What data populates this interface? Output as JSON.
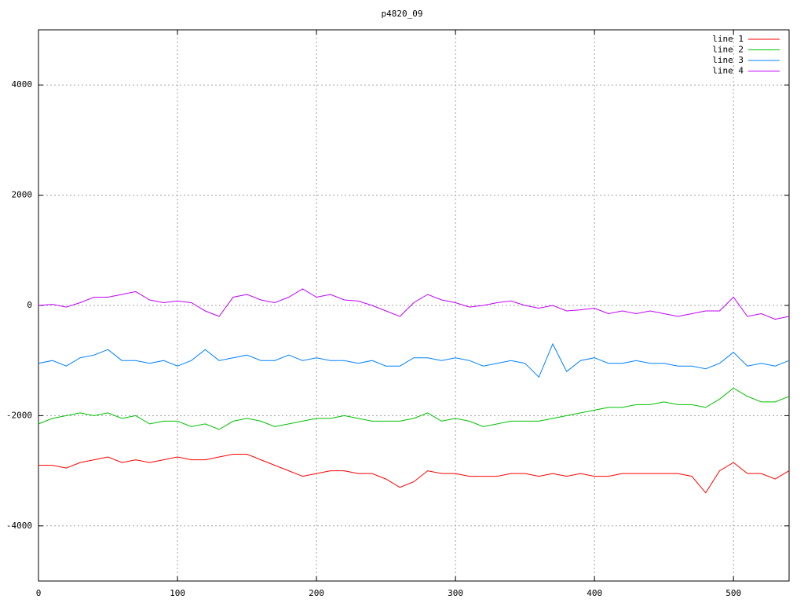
{
  "chart_data": {
    "type": "line",
    "title": "p4820_09",
    "x": [
      0,
      10,
      20,
      30,
      40,
      50,
      60,
      70,
      80,
      90,
      100,
      110,
      120,
      130,
      140,
      150,
      160,
      170,
      180,
      190,
      200,
      210,
      220,
      230,
      240,
      250,
      260,
      270,
      280,
      290,
      300,
      310,
      320,
      330,
      340,
      350,
      360,
      370,
      380,
      390,
      400,
      410,
      420,
      430,
      440,
      450,
      460,
      470,
      480,
      490,
      500,
      510,
      520,
      530,
      540
    ],
    "series": [
      {
        "name": "line 1",
        "color": "#ff0000",
        "values": [
          -2900,
          -2900,
          -2950,
          -2850,
          -2800,
          -2750,
          -2850,
          -2800,
          -2850,
          -2800,
          -2750,
          -2800,
          -2800,
          -2750,
          -2700,
          -2700,
          -2800,
          -2900,
          -3000,
          -3100,
          -3050,
          -3000,
          -3000,
          -3050,
          -3050,
          -3150,
          -3300,
          -3200,
          -3000,
          -3050,
          -3050,
          -3100,
          -3100,
          -3100,
          -3050,
          -3050,
          -3100,
          -3050,
          -3100,
          -3050,
          -3100,
          -3100,
          -3050,
          -3050,
          -3050,
          -3050,
          -3050,
          -3100,
          -3400,
          -3000,
          -2850,
          -3050,
          -3050,
          -3150,
          -3000
        ]
      },
      {
        "name": "line 2",
        "color": "#00c000",
        "values": [
          -2150,
          -2050,
          -2000,
          -1950,
          -2000,
          -1950,
          -2050,
          -2000,
          -2150,
          -2100,
          -2100,
          -2200,
          -2150,
          -2250,
          -2100,
          -2050,
          -2100,
          -2200,
          -2150,
          -2100,
          -2050,
          -2050,
          -2000,
          -2050,
          -2100,
          -2100,
          -2100,
          -2050,
          -1950,
          -2100,
          -2050,
          -2100,
          -2200,
          -2150,
          -2100,
          -2100,
          -2100,
          -2050,
          -2000,
          -1950,
          -1900,
          -1850,
          -1850,
          -1800,
          -1800,
          -1750,
          -1800,
          -1800,
          -1850,
          -1700,
          -1500,
          -1650,
          -1750,
          -1750,
          -1650
        ]
      },
      {
        "name": "line 3",
        "color": "#0080ff",
        "values": [
          -1050,
          -1000,
          -1100,
          -950,
          -900,
          -800,
          -1000,
          -1000,
          -1050,
          -1000,
          -1100,
          -1000,
          -800,
          -1000,
          -950,
          -900,
          -1000,
          -1000,
          -900,
          -1000,
          -950,
          -1000,
          -1000,
          -1050,
          -1000,
          -1100,
          -1100,
          -950,
          -950,
          -1000,
          -950,
          -1000,
          -1100,
          -1050,
          -1000,
          -1050,
          -1300,
          -700,
          -1200,
          -1000,
          -950,
          -1050,
          -1050,
          -1000,
          -1050,
          -1050,
          -1100,
          -1100,
          -1150,
          -1050,
          -850,
          -1100,
          -1050,
          -1100,
          -1000
        ]
      },
      {
        "name": "line 4",
        "color": "#c000ff",
        "values": [
          0,
          20,
          -30,
          50,
          150,
          150,
          200,
          250,
          100,
          50,
          80,
          50,
          -100,
          -200,
          150,
          200,
          100,
          50,
          150,
          300,
          150,
          200,
          100,
          80,
          0,
          -100,
          -200,
          50,
          200,
          100,
          50,
          -30,
          0,
          50,
          80,
          0,
          -50,
          0,
          -100,
          -80,
          -50,
          -150,
          -100,
          -150,
          -100,
          -150,
          -200,
          -150,
          -100,
          -100,
          150,
          -200,
          -150,
          -250,
          -200
        ]
      }
    ],
    "xlim": [
      0,
      540
    ],
    "ylim": [
      -5000,
      5000
    ],
    "xticks": [
      0,
      100,
      200,
      300,
      400,
      500
    ],
    "yticks": [
      -4000,
      -2000,
      0,
      2000,
      4000
    ],
    "grid": true,
    "legend": "top-right"
  }
}
